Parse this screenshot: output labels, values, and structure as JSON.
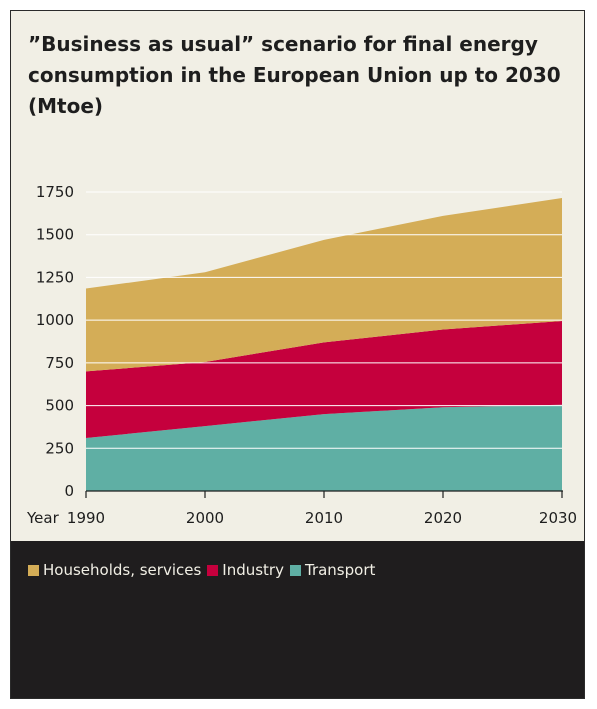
{
  "chart_data": {
    "type": "area",
    "stacked": true,
    "title": "”Business as usual” scenario for final energy consumption in the European Union up to 2030 (Mtoe)",
    "x_prefix": "Year",
    "x": [
      1990,
      2000,
      2010,
      2020,
      2030
    ],
    "xticks": [
      "1990",
      "2000",
      "2010",
      "2020",
      "2030"
    ],
    "ylim": [
      0,
      1750
    ],
    "yticks": [
      0,
      250,
      500,
      750,
      1000,
      1250,
      1500,
      1750
    ],
    "grid": true,
    "legend_position": "bottom",
    "series": [
      {
        "name": "Transport",
        "color": "#5fafa4",
        "values": [
          310,
          380,
          450,
          490,
          505
        ]
      },
      {
        "name": "Industry",
        "color": "#c5003d",
        "values": [
          390,
          375,
          420,
          455,
          490
        ]
      },
      {
        "name": "Households, services",
        "color": "#d4ad57",
        "values": [
          485,
          525,
          600,
          665,
          720
        ]
      }
    ],
    "legend_order": [
      "Households, services",
      "Industry",
      "Transport"
    ]
  }
}
